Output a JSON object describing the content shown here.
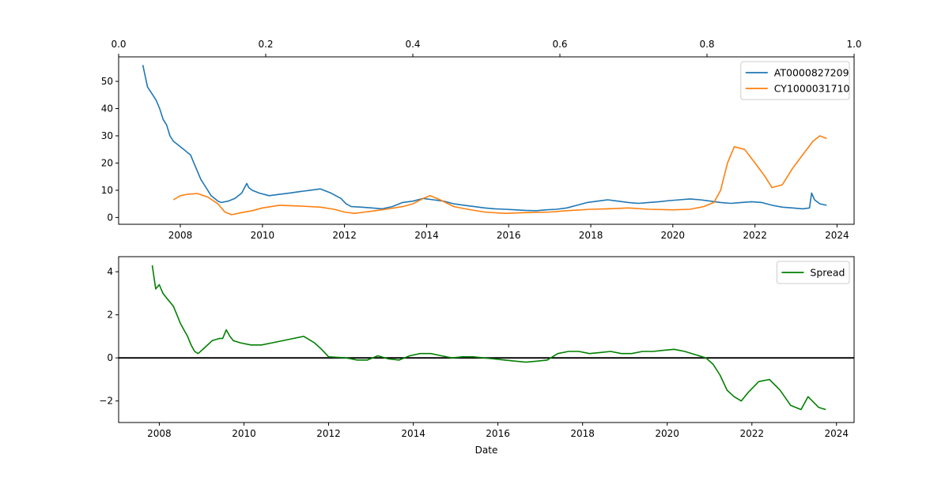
{
  "chart_data": [
    {
      "type": "line",
      "panel": "top",
      "title": "",
      "xlabel": "",
      "ylabel": "",
      "x_ticks": [
        "2008",
        "2010",
        "2012",
        "2014",
        "2016",
        "2018",
        "2020",
        "2022",
        "2024"
      ],
      "y_ticks": [
        "0",
        "10",
        "20",
        "30",
        "40",
        "50"
      ],
      "secondary_x_ticks": [
        "0.0",
        "0.2",
        "0.4",
        "0.6",
        "0.8",
        "1.0"
      ],
      "xlim": [
        "2006-07-01",
        "2024-06-01"
      ],
      "ylim": [
        -2.5,
        59
      ],
      "grid": false,
      "legend": "top-right",
      "colors": {
        "AT0000827209": "#1f77b4",
        "CY1000031710": "#ff7f0e"
      },
      "series": [
        {
          "name": "AT0000827209",
          "x": [
            "2007-02-01",
            "2007-03-15",
            "2007-05-01",
            "2007-06-01",
            "2007-07-01",
            "2007-08-01",
            "2007-09-01",
            "2007-10-01",
            "2007-11-01",
            "2007-12-01",
            "2008-01-01",
            "2008-02-01",
            "2008-03-01",
            "2008-04-01",
            "2008-05-01",
            "2008-06-01",
            "2008-07-01",
            "2008-08-01",
            "2008-09-01",
            "2008-10-01",
            "2008-11-01",
            "2008-12-01",
            "2009-01-01",
            "2009-03-01",
            "2009-05-01",
            "2009-07-01",
            "2009-08-15",
            "2009-09-01",
            "2009-10-01",
            "2009-12-01",
            "2010-03-01",
            "2010-06-01",
            "2010-09-01",
            "2010-12-01",
            "2011-03-01",
            "2011-06-01",
            "2011-09-01",
            "2011-12-01",
            "2012-01-15",
            "2012-03-01",
            "2012-06-01",
            "2012-09-01",
            "2012-12-01",
            "2013-03-01",
            "2013-06-01",
            "2013-09-01",
            "2013-12-01",
            "2014-03-01",
            "2014-06-01",
            "2014-09-01",
            "2014-12-01",
            "2015-03-01",
            "2015-06-01",
            "2015-09-01",
            "2015-12-01",
            "2016-03-01",
            "2016-06-01",
            "2016-09-01",
            "2016-12-01",
            "2017-03-01",
            "2017-06-01",
            "2017-09-01",
            "2017-12-01",
            "2018-03-01",
            "2018-06-01",
            "2018-09-01",
            "2018-12-01",
            "2019-03-01",
            "2019-06-01",
            "2019-09-01",
            "2019-12-01",
            "2020-03-01",
            "2020-06-01",
            "2020-09-01",
            "2020-12-01",
            "2021-03-01",
            "2021-06-01",
            "2021-09-01",
            "2021-12-01",
            "2022-03-01",
            "2022-06-01",
            "2022-09-01",
            "2022-12-01",
            "2023-03-01",
            "2023-05-01",
            "2023-05-20",
            "2023-06-15",
            "2023-08-01",
            "2023-10-01"
          ],
          "y": [
            56,
            48,
            45,
            43,
            40,
            36,
            34,
            30,
            28,
            27,
            26,
            25,
            24,
            23,
            20,
            17,
            14,
            12,
            10,
            8,
            7,
            6,
            5.5,
            6,
            7,
            9,
            12.5,
            11,
            10,
            9,
            8,
            8.5,
            9,
            9.5,
            10,
            10.5,
            9,
            7,
            5,
            4,
            3.8,
            3.5,
            3.2,
            4,
            5.5,
            6,
            7,
            6.5,
            6,
            5,
            4.5,
            4,
            3.5,
            3.2,
            3,
            2.8,
            2.6,
            2.5,
            2.8,
            3,
            3.5,
            4.5,
            5.5,
            6,
            6.5,
            6,
            5.5,
            5.2,
            5.5,
            5.8,
            6.2,
            6.5,
            6.8,
            6.5,
            6,
            5.5,
            5.2,
            5.5,
            5.8,
            5.5,
            4.5,
            3.8,
            3.5,
            3.2,
            3.5,
            9,
            6.5,
            5,
            4.5
          ]
        },
        {
          "name": "CY1000031710",
          "x": [
            "2007-11-01",
            "2008-01-01",
            "2008-03-01",
            "2008-06-01",
            "2008-09-01",
            "2008-12-01",
            "2009-02-01",
            "2009-04-01",
            "2009-07-01",
            "2009-10-01",
            "2010-01-01",
            "2010-06-01",
            "2010-12-01",
            "2011-06-01",
            "2011-10-01",
            "2012-01-01",
            "2012-04-01",
            "2012-07-01",
            "2012-10-01",
            "2013-01-01",
            "2013-06-01",
            "2013-09-01",
            "2013-12-01",
            "2014-02-01",
            "2014-05-01",
            "2014-09-01",
            "2015-01-01",
            "2015-06-01",
            "2015-12-01",
            "2016-06-01",
            "2017-01-01",
            "2017-06-01",
            "2018-01-01",
            "2018-06-01",
            "2018-12-01",
            "2019-06-01",
            "2020-01-01",
            "2020-06-01",
            "2020-10-01",
            "2021-01-01",
            "2021-03-01",
            "2021-05-01",
            "2021-07-01",
            "2021-10-01",
            "2022-01-01",
            "2022-04-01",
            "2022-06-01",
            "2022-09-01",
            "2022-12-01",
            "2023-03-01",
            "2023-06-01",
            "2023-08-01",
            "2023-10-01"
          ],
          "y": [
            6.5,
            8,
            8.5,
            8.8,
            7.5,
            5,
            2,
            1,
            1.8,
            2.5,
            3.5,
            4.5,
            4.2,
            3.8,
            3,
            2,
            1.5,
            2,
            2.5,
            3,
            4,
            5,
            7,
            8,
            6.5,
            4,
            3,
            2,
            1.5,
            1.8,
            2,
            2.5,
            3,
            3.2,
            3.5,
            3,
            2.8,
            3,
            4,
            5.5,
            10,
            20,
            26,
            25,
            20,
            15,
            11,
            12,
            18,
            23,
            28,
            30,
            29
          ]
        }
      ]
    },
    {
      "type": "line",
      "panel": "bottom",
      "title": "",
      "xlabel": "Date",
      "ylabel": "",
      "x_ticks": [
        "2008",
        "2010",
        "2012",
        "2014",
        "2016",
        "2018",
        "2020",
        "2022",
        "2024"
      ],
      "y_ticks": [
        "−2",
        "0",
        "2",
        "4"
      ],
      "xlim": [
        "2007-01-15",
        "2024-06-01"
      ],
      "ylim": [
        -3.0,
        4.7
      ],
      "hline": 0,
      "grid": false,
      "legend": "top-right",
      "colors": {
        "Spread": "#008000",
        "zero-line": "#000000"
      },
      "series": [
        {
          "name": "Spread",
          "x": [
            "2007-11-01",
            "2007-12-01",
            "2008-01-01",
            "2008-02-01",
            "2008-03-01",
            "2008-04-01",
            "2008-05-01",
            "2008-06-01",
            "2008-07-01",
            "2008-08-01",
            "2008-09-01",
            "2008-10-01",
            "2008-11-01",
            "2008-12-01",
            "2009-02-01",
            "2009-04-01",
            "2009-06-01",
            "2009-07-01",
            "2009-08-01",
            "2009-09-01",
            "2009-10-01",
            "2009-12-01",
            "2010-03-01",
            "2010-06-01",
            "2010-09-01",
            "2010-12-01",
            "2011-03-01",
            "2011-06-01",
            "2011-09-01",
            "2011-11-01",
            "2012-01-01",
            "2012-06-01",
            "2012-09-01",
            "2012-12-01",
            "2013-03-01",
            "2013-06-01",
            "2013-09-01",
            "2013-12-01",
            "2014-03-01",
            "2014-06-01",
            "2014-09-01",
            "2014-12-01",
            "2015-03-01",
            "2015-06-01",
            "2015-09-01",
            "2015-12-01",
            "2016-03-01",
            "2016-06-01",
            "2016-09-01",
            "2016-12-01",
            "2017-03-01",
            "2017-06-01",
            "2017-09-01",
            "2017-12-01",
            "2018-03-01",
            "2018-06-01",
            "2018-09-01",
            "2018-12-01",
            "2019-03-01",
            "2019-06-01",
            "2019-09-01",
            "2019-12-01",
            "2020-03-01",
            "2020-06-01",
            "2020-09-01",
            "2020-12-01",
            "2021-02-01",
            "2021-04-01",
            "2021-06-01",
            "2021-08-01",
            "2021-10-01",
            "2021-12-01",
            "2022-03-01",
            "2022-06-01",
            "2022-09-01",
            "2022-12-01",
            "2023-03-01",
            "2023-05-01",
            "2023-08-01",
            "2023-10-01"
          ],
          "y": [
            4.3,
            3.2,
            3.4,
            3.0,
            2.8,
            2.6,
            2.4,
            2.0,
            1.6,
            1.3,
            1.0,
            0.6,
            0.3,
            0.2,
            0.5,
            0.8,
            0.9,
            0.9,
            1.3,
            1.0,
            0.8,
            0.7,
            0.6,
            0.6,
            0.7,
            0.8,
            0.9,
            1.0,
            0.7,
            0.4,
            0.05,
            0.0,
            -0.1,
            -0.1,
            0.1,
            -0.05,
            -0.1,
            0.1,
            0.2,
            0.2,
            0.1,
            0.0,
            0.05,
            0.05,
            0.0,
            -0.05,
            -0.1,
            -0.15,
            -0.2,
            -0.15,
            -0.1,
            0.2,
            0.3,
            0.3,
            0.2,
            0.25,
            0.3,
            0.2,
            0.2,
            0.3,
            0.3,
            0.35,
            0.4,
            0.3,
            0.15,
            0.0,
            -0.3,
            -0.8,
            -1.5,
            -1.8,
            -2.0,
            -1.6,
            -1.1,
            -1.0,
            -1.5,
            -2.2,
            -2.4,
            -1.8,
            -2.3,
            -2.4
          ]
        }
      ]
    }
  ]
}
